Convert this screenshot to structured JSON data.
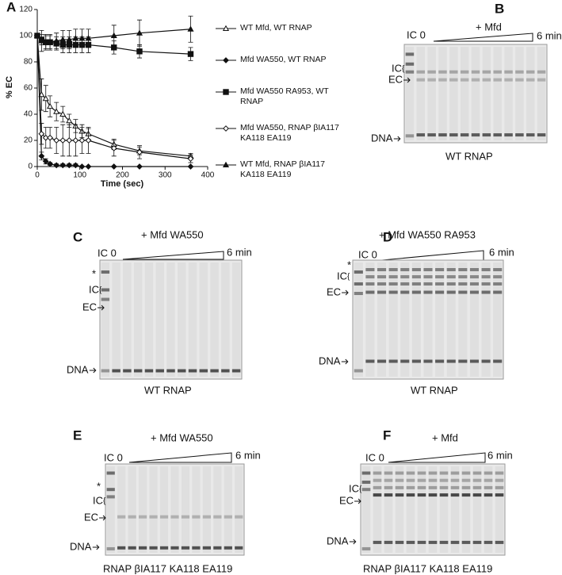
{
  "chart_data": {
    "type": "line",
    "label": "A",
    "y_label": "% EC",
    "x_label": "Time (sec)",
    "x": [
      0,
      10,
      20,
      30,
      45,
      60,
      75,
      90,
      105,
      120,
      180,
      240,
      360
    ],
    "xlim": [
      0,
      400
    ],
    "xticks": [
      0,
      100,
      200,
      300,
      400
    ],
    "ylim": [
      0,
      120
    ],
    "yticks": [
      0,
      20,
      40,
      60,
      80,
      100,
      120
    ],
    "series": [
      {
        "name": "WT Mfd, WT RNAP",
        "color": "#111111",
        "marker": "open-triangle",
        "values": [
          100,
          55,
          52,
          46,
          42,
          40,
          35,
          31,
          27,
          25,
          17,
          12,
          8
        ],
        "errors": [
          0,
          12,
          10,
          8,
          7,
          6,
          5,
          5,
          5,
          4,
          4,
          3,
          2
        ]
      },
      {
        "name": "Mfd WA550, WT RNAP",
        "color": "#111111",
        "marker": "filled-diamond",
        "values": [
          100,
          8,
          4,
          2,
          1,
          1,
          1,
          1,
          0,
          0,
          0,
          0,
          0
        ],
        "errors": [
          0,
          3,
          2,
          1,
          1,
          1,
          1,
          1,
          0,
          0,
          0,
          0,
          0
        ]
      },
      {
        "name": "Mfd WA550 RA953, WT RNAP",
        "color": "#111111",
        "marker": "filled-square",
        "values": [
          100,
          97,
          95,
          95,
          94,
          93,
          93,
          93,
          93,
          93,
          91,
          88,
          86
        ],
        "errors": [
          0,
          4,
          5,
          5,
          5,
          6,
          6,
          6,
          6,
          6,
          5,
          5,
          5
        ]
      },
      {
        "name": "Mfd WA550, RNAP βIA117 KA118 EA119",
        "color": "#111111",
        "marker": "open-diamond",
        "values": [
          100,
          25,
          22,
          22,
          20,
          20,
          20,
          20,
          20,
          20,
          14,
          11,
          6
        ],
        "errors": [
          0,
          8,
          8,
          8,
          10,
          12,
          12,
          12,
          10,
          10,
          6,
          5,
          3
        ]
      },
      {
        "name": "WT Mfd, RNAP βIA117 KA118 EA119",
        "color": "#111111",
        "marker": "filled-triangle",
        "values": [
          100,
          96,
          95,
          95,
          96,
          97,
          97,
          98,
          98,
          98,
          100,
          102,
          105
        ],
        "errors": [
          0,
          8,
          6,
          6,
          6,
          7,
          7,
          7,
          7,
          7,
          8,
          10,
          10
        ]
      }
    ]
  },
  "gels": [
    {
      "letter": "B",
      "start": "IC 0",
      "treatment": "+ Mfd",
      "end": "6 min",
      "labels": [
        "IC",
        "EC",
        "DNA"
      ],
      "footer": "WT RNAP"
    },
    {
      "letter": "C",
      "start": "IC 0",
      "treatment": "+ Mfd WA550",
      "end": "6 min",
      "labels": [
        "*",
        "IC",
        "EC",
        "DNA"
      ],
      "footer": "WT RNAP"
    },
    {
      "letter": "D",
      "start": "IC 0",
      "treatment": "+ Mfd WA550 RA953",
      "end": "6 min",
      "labels": [
        "*",
        "IC",
        "EC",
        "DNA"
      ],
      "footer": "WT RNAP"
    },
    {
      "letter": "E",
      "start": "IC 0",
      "treatment": "+ Mfd WA550",
      "end": "6 min",
      "labels": [
        "*",
        "IC",
        "EC",
        "DNA"
      ],
      "footer": "RNAP βIA117 KA118 EA119"
    },
    {
      "letter": "F",
      "start": "IC 0",
      "treatment": "+ Mfd",
      "end": "6 min",
      "labels": [
        "IC",
        "EC",
        "DNA"
      ],
      "footer": "RNAP βIA117 KA118 EA119"
    }
  ]
}
